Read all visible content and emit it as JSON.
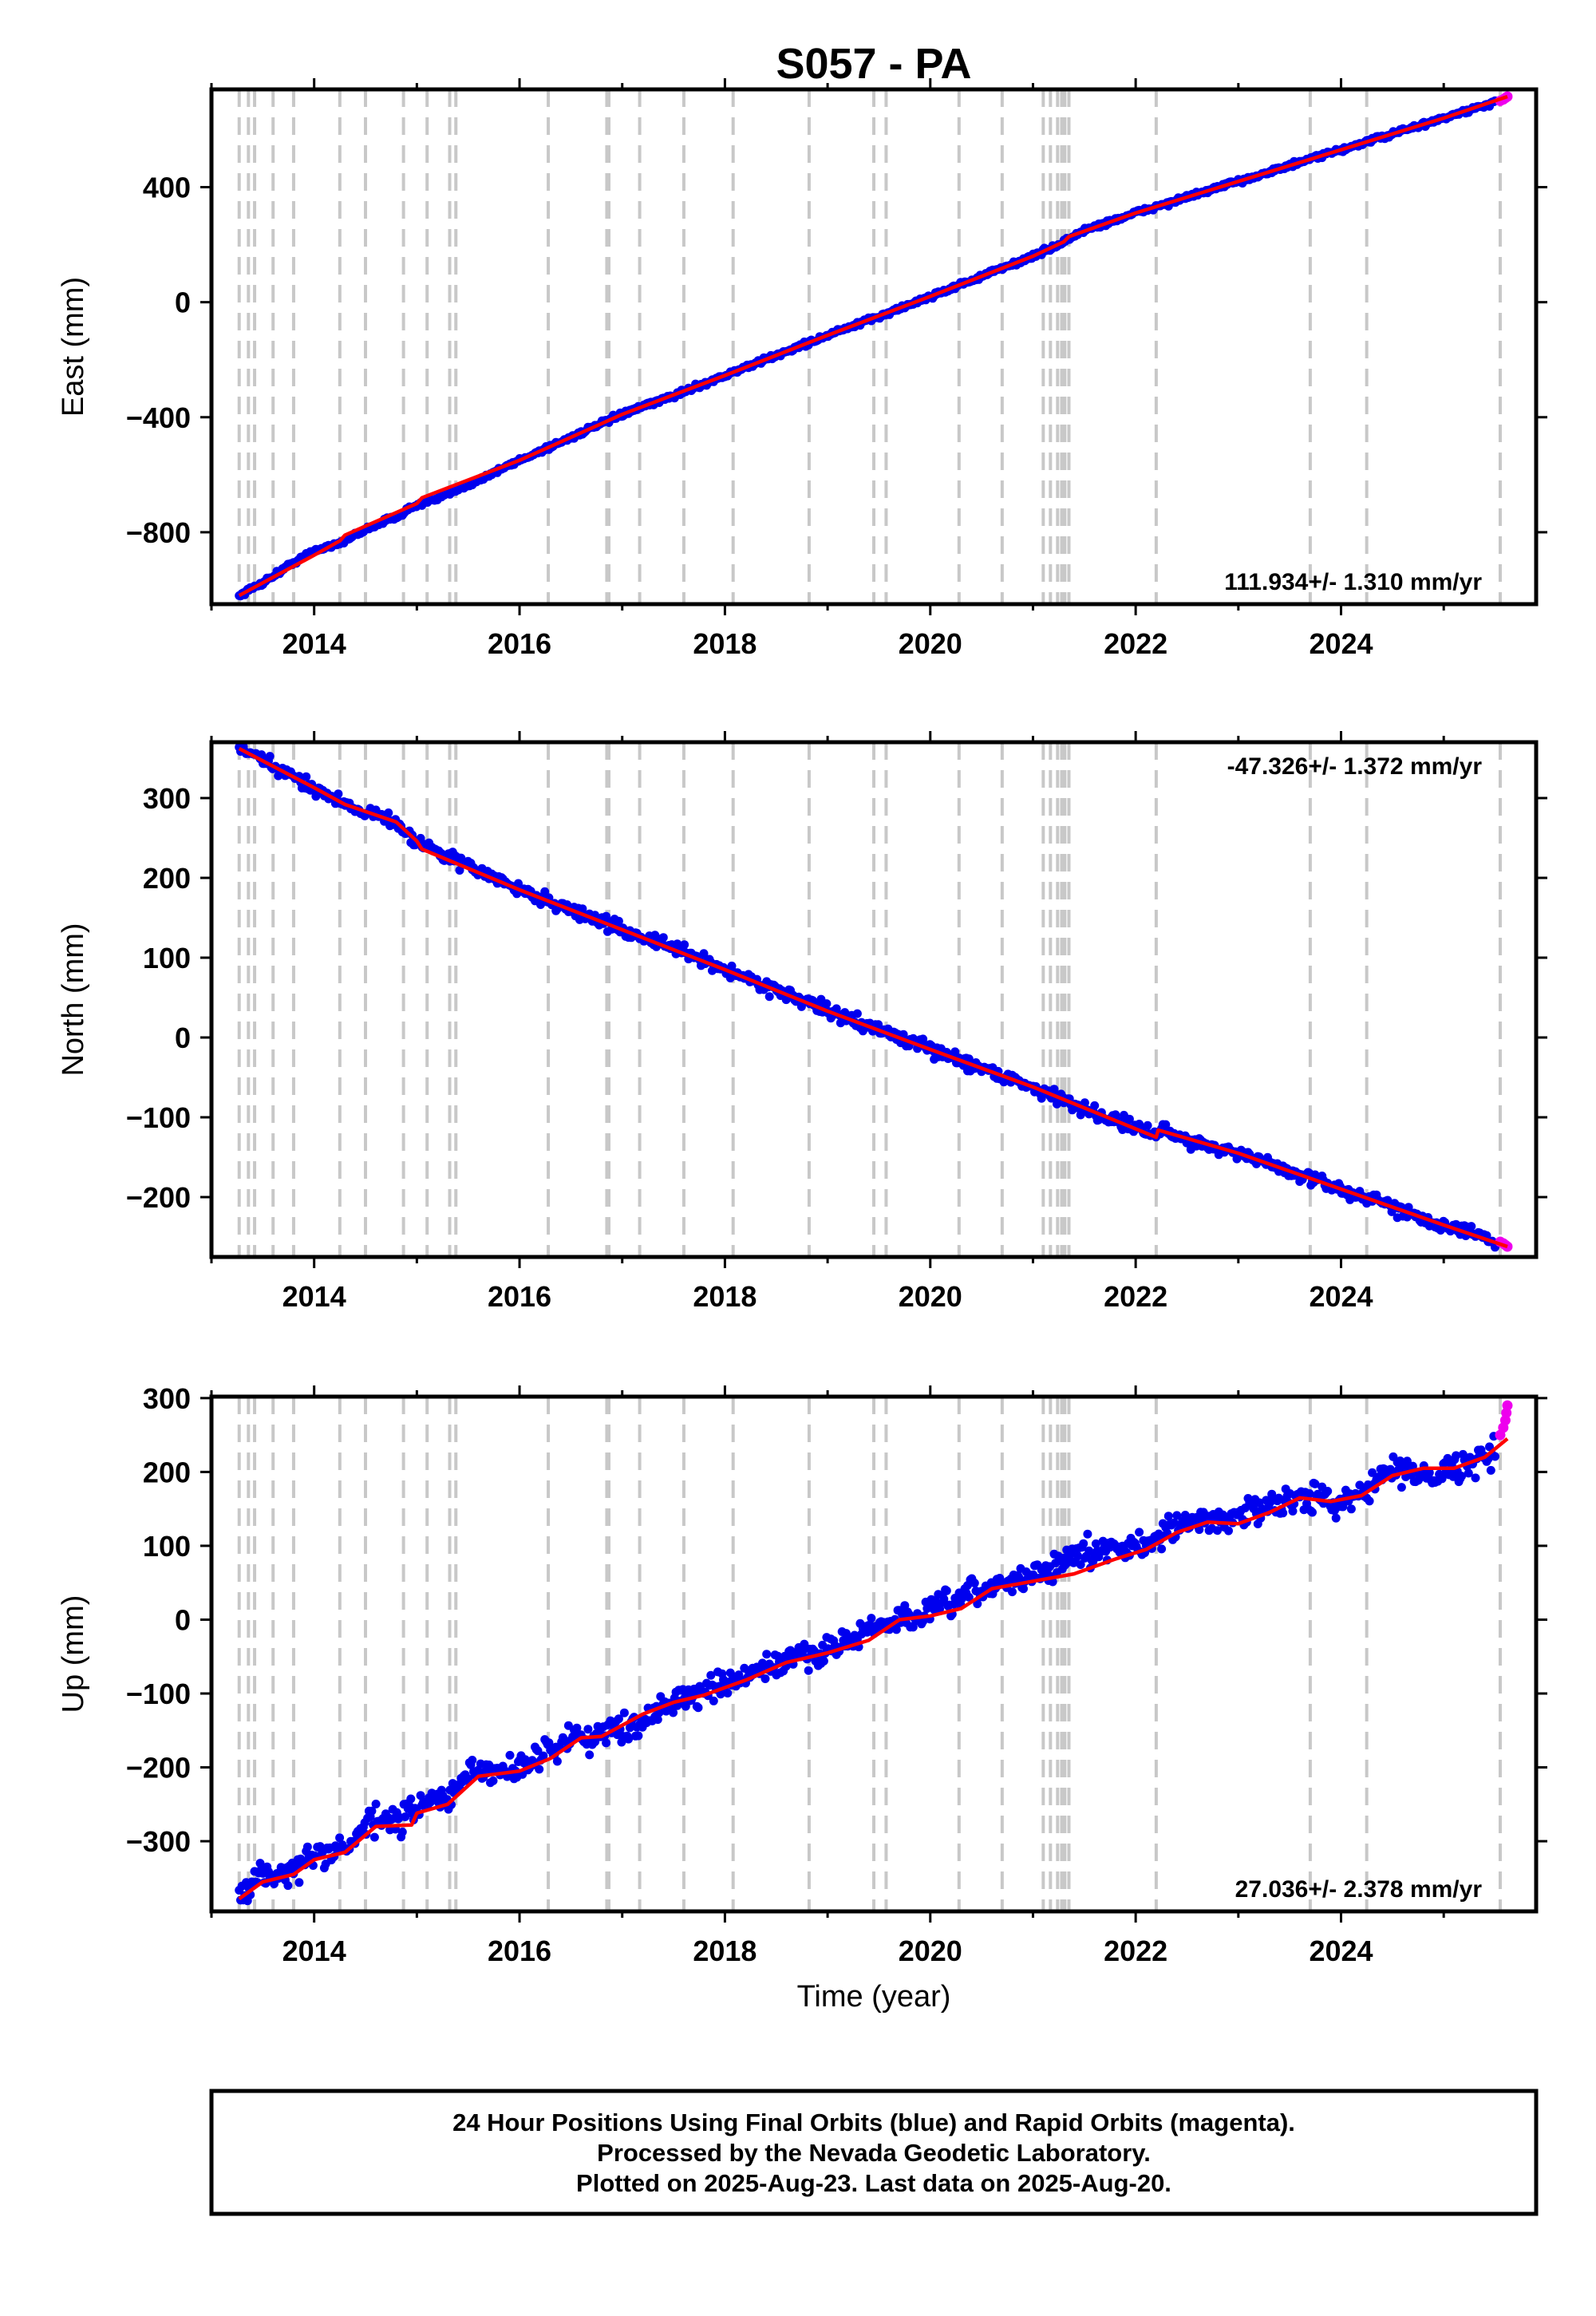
{
  "chart_data": [
    {
      "type": "scatter",
      "title": "S057 - PA",
      "ylabel": "East (mm)",
      "xlabel": "",
      "xlim": [
        2013.0,
        2025.9
      ],
      "ylim": [
        -1050,
        740
      ],
      "xticks": [
        2014,
        2016,
        2018,
        2020,
        2022,
        2024
      ],
      "xtick_labels": [
        "2014",
        "2016",
        "2018",
        "2020",
        "2022",
        "2024"
      ],
      "yticks": [
        400,
        0,
        -400,
        -800
      ],
      "ytick_labels": [
        "400",
        "0",
        "−400",
        "−800"
      ],
      "rate_label": "111.934+/- 1.310 mm/yr",
      "rate_position": "bottom-right",
      "series": [
        {
          "name": "Final Orbits",
          "color": "#0000ee",
          "x": [
            2013.27,
            2013.5,
            2013.8,
            2014.0,
            2014.3,
            2014.5,
            2014.8,
            2015.0,
            2015.2,
            2015.5,
            2016.0,
            2016.5,
            2017.0,
            2017.5,
            2018.0,
            2018.5,
            2019.0,
            2019.5,
            2020.0,
            2020.5,
            2021.0,
            2021.25,
            2021.4,
            2021.5,
            2022.0,
            2022.5,
            2023.0,
            2023.5,
            2024.0,
            2024.5,
            2025.0,
            2025.5
          ],
          "y": [
            -1020,
            -975,
            -905,
            -865,
            -830,
            -790,
            -745,
            -705,
            -685,
            -635,
            -550,
            -470,
            -390,
            -325,
            -255,
            -185,
            -115,
            -50,
            20,
            90,
            160,
            200,
            230,
            250,
            310,
            365,
            420,
            475,
            530,
            585,
            640,
            695
          ]
        },
        {
          "name": "Rapid Orbits",
          "color": "#ee00ee",
          "x": [
            2025.55,
            2025.58,
            2025.6,
            2025.62
          ],
          "y": [
            700,
            705,
            710,
            715
          ]
        },
        {
          "name": "Model",
          "color": "#ff0000",
          "x": [
            2013.27,
            2014.0,
            2014.25,
            2014.3,
            2015.0,
            2015.05,
            2016.0,
            2017.0,
            2018.0,
            2019.0,
            2020.0,
            2021.0,
            2021.3,
            2021.35,
            2022.0,
            2023.0,
            2024.0,
            2025.0,
            2025.62
          ],
          "y": [
            -1020,
            -880,
            -830,
            -810,
            -700,
            -680,
            -550,
            -390,
            -255,
            -115,
            20,
            160,
            210,
            228,
            310,
            420,
            530,
            640,
            715
          ]
        }
      ]
    },
    {
      "type": "scatter",
      "ylabel": "North (mm)",
      "xlabel": "",
      "xlim": [
        2013.0,
        2025.9
      ],
      "ylim": [
        -275,
        370
      ],
      "xticks": [
        2014,
        2016,
        2018,
        2020,
        2022,
        2024
      ],
      "xtick_labels": [
        "2014",
        "2016",
        "2018",
        "2020",
        "2022",
        "2024"
      ],
      "yticks": [
        300,
        200,
        100,
        0,
        -100,
        -200
      ],
      "ytick_labels": [
        "300",
        "200",
        "100",
        "0",
        "−100",
        "−200"
      ],
      "rate_label": "-47.326+/- 1.372 mm/yr",
      "rate_position": "top-right",
      "series": [
        {
          "name": "Final Orbits",
          "color": "#0000ee",
          "x": [
            2013.27,
            2013.5,
            2013.8,
            2014.0,
            2014.3,
            2014.5,
            2014.8,
            2015.0,
            2015.2,
            2015.5,
            2016.0,
            2016.5,
            2017.0,
            2017.5,
            2018.0,
            2018.5,
            2019.0,
            2019.5,
            2020.0,
            2020.5,
            2021.0,
            2021.5,
            2022.0,
            2022.2,
            2022.25,
            2022.5,
            2023.0,
            2023.5,
            2024.0,
            2024.5,
            2025.0,
            2025.5
          ],
          "y": [
            362,
            347,
            325,
            313,
            293,
            283,
            270,
            245,
            232,
            215,
            185,
            160,
            135,
            112,
            85,
            60,
            33,
            10,
            -15,
            -38,
            -62,
            -90,
            -112,
            -125,
            -115,
            -128,
            -145,
            -168,
            -190,
            -212,
            -235,
            -255
          ]
        },
        {
          "name": "Rapid Orbits",
          "color": "#ee00ee",
          "x": [
            2025.55,
            2025.58,
            2025.6,
            2025.62
          ],
          "y": [
            -256,
            -258,
            -260,
            -262
          ]
        },
        {
          "name": "Model",
          "color": "#ff0000",
          "x": [
            2013.27,
            2014.0,
            2014.3,
            2014.8,
            2015.0,
            2015.05,
            2016.0,
            2017.0,
            2018.0,
            2019.0,
            2020.0,
            2021.0,
            2022.2,
            2022.22,
            2023.0,
            2024.0,
            2025.0,
            2025.62
          ],
          "y": [
            362,
            313,
            292,
            270,
            246,
            236,
            185,
            135,
            85,
            33,
            -15,
            -62,
            -125,
            -116,
            -145,
            -190,
            -235,
            -262
          ]
        }
      ]
    },
    {
      "type": "scatter",
      "ylabel": "Up (mm)",
      "xlabel": "Time (year)",
      "xlim": [
        2013.0,
        2025.9
      ],
      "ylim": [
        -395,
        302
      ],
      "xticks": [
        2014,
        2016,
        2018,
        2020,
        2022,
        2024
      ],
      "xtick_labels": [
        "2014",
        "2016",
        "2018",
        "2020",
        "2022",
        "2024"
      ],
      "yticks": [
        300,
        200,
        100,
        0,
        -100,
        -200,
        -300
      ],
      "ytick_labels": [
        "300",
        "200",
        "100",
        "0",
        "−100",
        "−200",
        "−300"
      ],
      "rate_label": "27.036+/- 2.378 mm/yr",
      "rate_position": "bottom-right",
      "series": [
        {
          "name": "Final Orbits",
          "color": "#0000ee",
          "x": [
            2013.27,
            2013.5,
            2013.8,
            2014.0,
            2014.3,
            2014.6,
            2014.8,
            2015.0,
            2015.3,
            2015.5,
            2016.0,
            2016.5,
            2017.0,
            2017.5,
            2018.0,
            2018.5,
            2019.0,
            2019.5,
            2020.0,
            2020.5,
            2021.0,
            2021.5,
            2022.0,
            2022.5,
            2023.0,
            2023.5,
            2024.0,
            2024.5,
            2025.0,
            2025.5
          ],
          "y": [
            -375,
            -345,
            -340,
            -320,
            -310,
            -270,
            -275,
            -255,
            -240,
            -210,
            -200,
            -160,
            -150,
            -110,
            -90,
            -60,
            -40,
            -10,
            10,
            40,
            60,
            90,
            100,
            130,
            140,
            165,
            160,
            200,
            200,
            225
          ]
        },
        {
          "name": "Rapid Orbits",
          "color": "#ee00ee",
          "x": [
            2025.55,
            2025.58,
            2025.6,
            2025.61,
            2025.62
          ],
          "y": [
            250,
            260,
            270,
            280,
            290
          ]
        },
        {
          "name": "Model",
          "color": "#ff0000",
          "x": [
            2013.27,
            2013.5,
            2013.8,
            2014.0,
            2014.3,
            2014.6,
            2014.95,
            2015.0,
            2015.3,
            2015.6,
            2016.0,
            2016.3,
            2016.6,
            2016.8,
            2017.2,
            2017.5,
            2017.8,
            2018.2,
            2018.6,
            2019.0,
            2019.4,
            2019.7,
            2020.0,
            2020.3,
            2020.6,
            2021.0,
            2021.4,
            2021.8,
            2022.1,
            2022.4,
            2022.7,
            2023.0,
            2023.3,
            2023.6,
            2023.9,
            2024.2,
            2024.5,
            2024.8,
            2025.1,
            2025.4,
            2025.62
          ],
          "y": [
            -378,
            -355,
            -345,
            -325,
            -315,
            -280,
            -278,
            -262,
            -250,
            -212,
            -205,
            -188,
            -160,
            -158,
            -128,
            -112,
            -102,
            -82,
            -58,
            -45,
            -28,
            0,
            5,
            15,
            42,
            52,
            62,
            82,
            95,
            118,
            132,
            130,
            145,
            165,
            160,
            168,
            195,
            205,
            205,
            220,
            245
          ]
        }
      ]
    }
  ],
  "event_lines_x": [
    2013.27,
    2013.36,
    2013.42,
    2013.6,
    2013.8,
    2014.25,
    2014.5,
    2014.87,
    2015.1,
    2015.32,
    2015.38,
    2016.28,
    2016.85,
    2016.87,
    2017.17,
    2017.6,
    2018.08,
    2018.82,
    2019.45,
    2019.57,
    2020.28,
    2020.7,
    2021.1,
    2021.17,
    2021.24,
    2021.28,
    2021.31,
    2021.35,
    2022.2,
    2023.7,
    2024.25,
    2025.55
  ],
  "colors": {
    "final_orbits": "#0000ee",
    "rapid_orbits": "#ee00ee",
    "model": "#ff0000",
    "event_lines": "#c8c8c8"
  },
  "footer": {
    "line1": "24 Hour Positions Using Final Orbits (blue) and Rapid Orbits (magenta).",
    "line2": "Processed by the Nevada Geodetic Laboratory.",
    "line3": "Plotted on 2025-Aug-23. Last data on 2025-Aug-20."
  }
}
